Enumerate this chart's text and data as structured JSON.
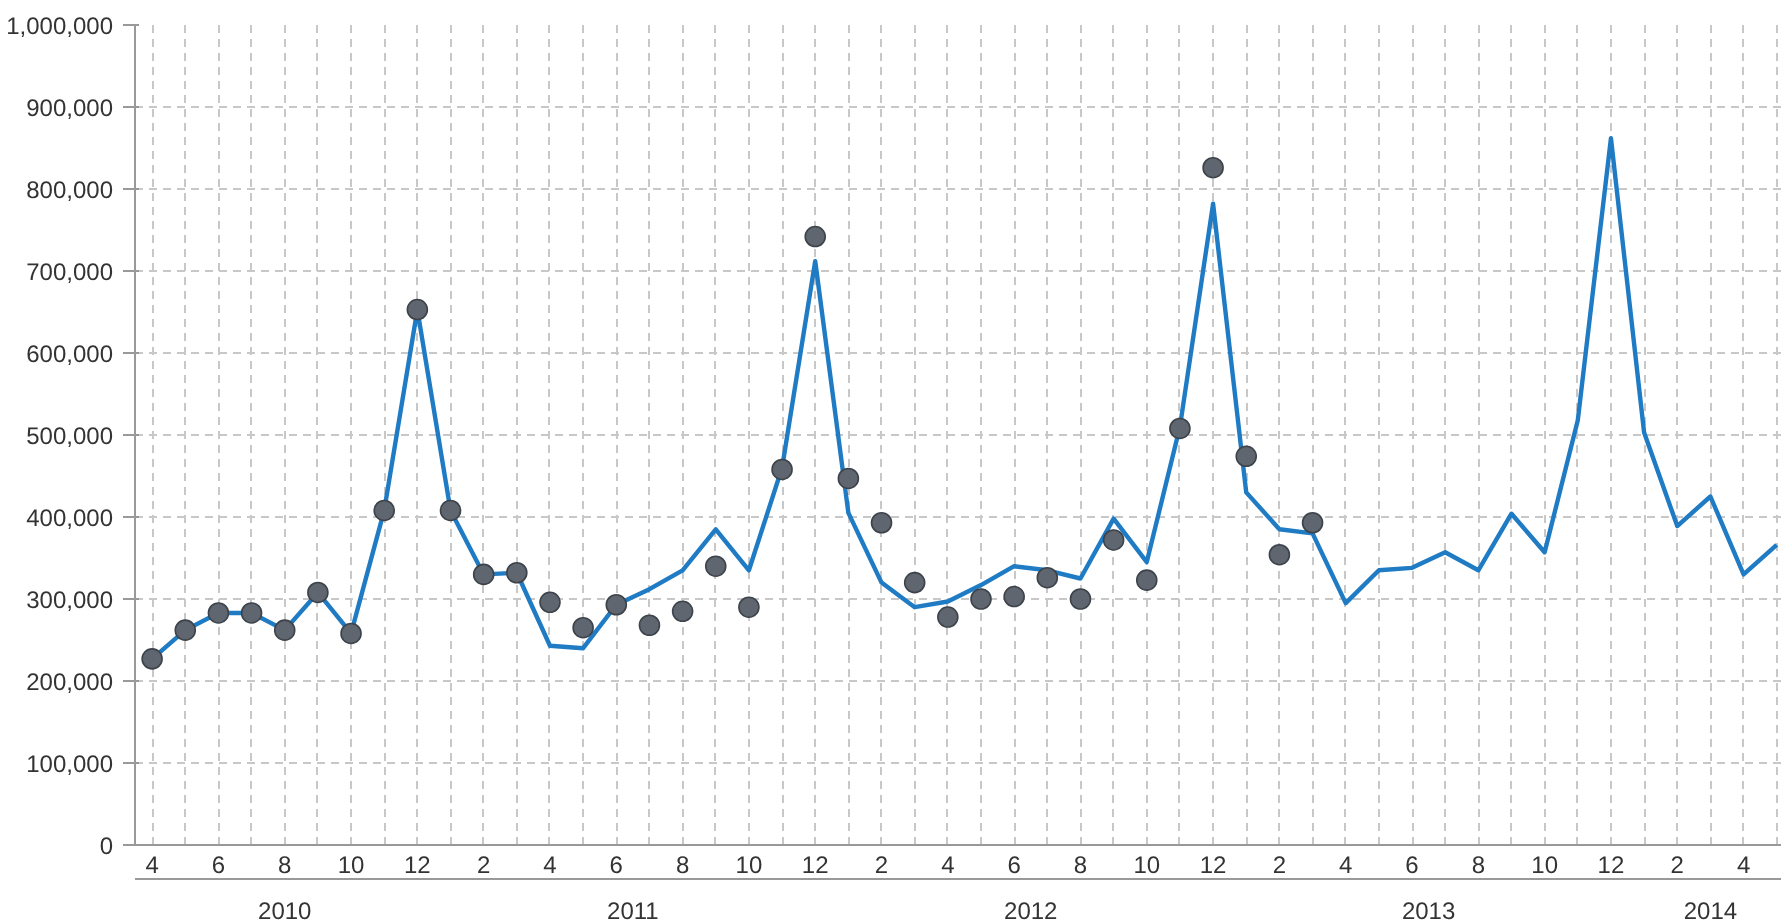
{
  "chart_data": {
    "type": "line",
    "x": [
      "2010-04",
      "2010-05",
      "2010-06",
      "2010-07",
      "2010-08",
      "2010-09",
      "2010-10",
      "2010-11",
      "2010-12",
      "2011-01",
      "2011-02",
      "2011-03",
      "2011-04",
      "2011-05",
      "2011-06",
      "2011-07",
      "2011-08",
      "2011-09",
      "2011-10",
      "2011-11",
      "2011-12",
      "2012-01",
      "2012-02",
      "2012-03",
      "2012-04",
      "2012-05",
      "2012-06",
      "2012-07",
      "2012-08",
      "2012-09",
      "2012-10",
      "2012-11",
      "2012-12",
      "2013-01",
      "2013-02",
      "2013-03",
      "2013-04",
      "2013-05",
      "2013-06",
      "2013-07",
      "2013-08",
      "2013-09",
      "2013-10",
      "2013-11",
      "2013-12",
      "2014-01",
      "2014-02",
      "2014-03",
      "2014-04",
      "2014-05"
    ],
    "series": [
      {
        "type": "line",
        "color": "#1f7bc4",
        "values": [
          227000,
          262000,
          283000,
          283000,
          262000,
          308000,
          258000,
          408000,
          653000,
          408000,
          330000,
          332000,
          243000,
          240000,
          293000,
          312000,
          335000,
          385000,
          335000,
          460000,
          712000,
          405000,
          320000,
          290000,
          297000,
          317000,
          340000,
          335000,
          325000,
          398000,
          345000,
          510000,
          782000,
          430000,
          385000,
          380000,
          295000,
          335000,
          338000,
          357000,
          335000,
          404000,
          357000,
          518000,
          862000,
          503000,
          389000,
          425000,
          330000,
          366000
        ]
      },
      {
        "type": "scatter",
        "color": "#5f6670",
        "marker": "circle",
        "x": [
          "2010-04",
          "2010-05",
          "2010-06",
          "2010-07",
          "2010-08",
          "2010-09",
          "2010-10",
          "2010-11",
          "2010-12",
          "2011-01",
          "2011-02",
          "2011-03",
          "2011-04",
          "2011-05",
          "2011-06",
          "2011-07",
          "2011-08",
          "2011-09",
          "2011-10",
          "2011-11",
          "2011-12",
          "2012-01",
          "2012-02",
          "2012-03",
          "2012-04",
          "2012-05",
          "2012-06",
          "2012-07",
          "2012-08",
          "2012-09",
          "2012-10",
          "2012-11",
          "2012-12",
          "2013-01",
          "2013-02",
          "2013-03"
        ],
        "values": [
          227000,
          262000,
          283000,
          283000,
          262000,
          308000,
          258000,
          408000,
          653000,
          408000,
          330000,
          332000,
          296000,
          265000,
          293000,
          268000,
          285000,
          340000,
          290000,
          458000,
          742000,
          447000,
          393000,
          320000,
          278000,
          300000,
          303000,
          326000,
          300000,
          372000,
          323000,
          508000,
          826000,
          474000,
          354000,
          393000
        ]
      }
    ],
    "xlim": [
      "2010-03-16",
      "2014-05-05"
    ],
    "xticks": [
      {
        "value": "2010-04",
        "label": "4"
      },
      {
        "value": "2010-05",
        "label": null
      },
      {
        "value": "2010-06",
        "label": "6"
      },
      {
        "value": "2010-07",
        "label": null
      },
      {
        "value": "2010-08",
        "label": "8"
      },
      {
        "value": "2010-09",
        "label": null
      },
      {
        "value": "2010-10",
        "label": "10"
      },
      {
        "value": "2010-11",
        "label": null
      },
      {
        "value": "2010-12",
        "label": "12"
      },
      {
        "value": "2011-01",
        "label": null
      },
      {
        "value": "2011-02",
        "label": "2"
      },
      {
        "value": "2011-03",
        "label": null
      },
      {
        "value": "2011-04",
        "label": "4"
      },
      {
        "value": "2011-05",
        "label": null
      },
      {
        "value": "2011-06",
        "label": "6"
      },
      {
        "value": "2011-07",
        "label": null
      },
      {
        "value": "2011-08",
        "label": "8"
      },
      {
        "value": "2011-09",
        "label": null
      },
      {
        "value": "2011-10",
        "label": "10"
      },
      {
        "value": "2011-11",
        "label": null
      },
      {
        "value": "2011-12",
        "label": "12"
      },
      {
        "value": "2012-01",
        "label": null
      },
      {
        "value": "2012-02",
        "label": "2"
      },
      {
        "value": "2012-03",
        "label": null
      },
      {
        "value": "2012-04",
        "label": "4"
      },
      {
        "value": "2012-05",
        "label": null
      },
      {
        "value": "2012-06",
        "label": "6"
      },
      {
        "value": "2012-07",
        "label": null
      },
      {
        "value": "2012-08",
        "label": "8"
      },
      {
        "value": "2012-09",
        "label": null
      },
      {
        "value": "2012-10",
        "label": "10"
      },
      {
        "value": "2012-11",
        "label": null
      },
      {
        "value": "2012-12",
        "label": "12"
      },
      {
        "value": "2013-01",
        "label": null
      },
      {
        "value": "2013-02",
        "label": "2"
      },
      {
        "value": "2013-03",
        "label": null
      },
      {
        "value": "2013-04",
        "label": "4"
      },
      {
        "value": "2013-05",
        "label": null
      },
      {
        "value": "2013-06",
        "label": "6"
      },
      {
        "value": "2013-07",
        "label": null
      },
      {
        "value": "2013-08",
        "label": "8"
      },
      {
        "value": "2013-09",
        "label": null
      },
      {
        "value": "2013-10",
        "label": "10"
      },
      {
        "value": "2013-11",
        "label": null
      },
      {
        "value": "2013-12",
        "label": "12"
      },
      {
        "value": "2014-01",
        "label": null
      },
      {
        "value": "2014-02",
        "label": "2"
      },
      {
        "value": "2014-03",
        "label": null
      },
      {
        "value": "2014-04",
        "label": "4"
      },
      {
        "value": "2014-05",
        "label": null
      }
    ],
    "ylim": [
      0,
      1000000
    ],
    "yticks": [
      {
        "value": 0,
        "label": "0"
      },
      {
        "value": 100000,
        "label": "100,000"
      },
      {
        "value": 200000,
        "label": "200,000"
      },
      {
        "value": 300000,
        "label": "300,000"
      },
      {
        "value": 400000,
        "label": "400,000"
      },
      {
        "value": 500000,
        "label": "500,000"
      },
      {
        "value": 600000,
        "label": "600,000"
      },
      {
        "value": 700000,
        "label": "700,000"
      },
      {
        "value": 800000,
        "label": "800,000"
      },
      {
        "value": 900000,
        "label": "900,000"
      },
      {
        "value": 1000000,
        "label": "1,000,000"
      }
    ],
    "annotations": [
      "2010",
      "2011",
      "2012",
      "2013",
      "2014"
    ],
    "grid": true,
    "line_style": "solid"
  }
}
